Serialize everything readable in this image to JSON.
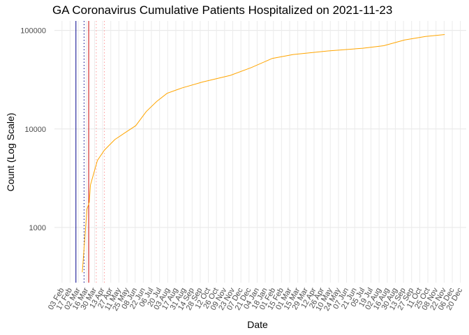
{
  "chart_data": {
    "type": "line",
    "title": "GA Coronavirus Cumulative Patients Hospitalized on 2021-11-23",
    "x_label": "Date",
    "y_label": "Count (Log Scale)",
    "log_y": true,
    "grid": true,
    "xlim": [
      -13,
      696
    ],
    "ylim": [
      275,
      125000
    ],
    "yticks": [
      1000,
      10000,
      100000
    ],
    "xticks": [
      {
        "value": 0,
        "label": "03 Feb"
      },
      {
        "value": 14,
        "label": "17 Feb"
      },
      {
        "value": 28,
        "label": "02 Mar"
      },
      {
        "value": 42,
        "label": "16 Mar"
      },
      {
        "value": 56,
        "label": "30 Mar"
      },
      {
        "value": 70,
        "label": "13 Apr"
      },
      {
        "value": 84,
        "label": "27 Apr"
      },
      {
        "value": 98,
        "label": "11 May"
      },
      {
        "value": 112,
        "label": "25 May"
      },
      {
        "value": 126,
        "label": "08 Jun"
      },
      {
        "value": 140,
        "label": "22 Jun"
      },
      {
        "value": 154,
        "label": "06 Jul"
      },
      {
        "value": 168,
        "label": "20 Jul"
      },
      {
        "value": 182,
        "label": "03 Aug"
      },
      {
        "value": 196,
        "label": "17 Aug"
      },
      {
        "value": 210,
        "label": "31 Aug"
      },
      {
        "value": 224,
        "label": "14 Sep"
      },
      {
        "value": 238,
        "label": "28 Sep"
      },
      {
        "value": 252,
        "label": "12 Oct"
      },
      {
        "value": 266,
        "label": "26 Oct"
      },
      {
        "value": 280,
        "label": "09 Nov"
      },
      {
        "value": 294,
        "label": "23 Nov"
      },
      {
        "value": 308,
        "label": "07 Dec"
      },
      {
        "value": 322,
        "label": "21 Dec"
      },
      {
        "value": 336,
        "label": "04 Jan"
      },
      {
        "value": 350,
        "label": "18 Jan"
      },
      {
        "value": 364,
        "label": "01 Feb"
      },
      {
        "value": 378,
        "label": "15 Feb"
      },
      {
        "value": 392,
        "label": "01 Mar"
      },
      {
        "value": 406,
        "label": "15 Mar"
      },
      {
        "value": 420,
        "label": "29 Mar"
      },
      {
        "value": 434,
        "label": "12 Apr"
      },
      {
        "value": 448,
        "label": "26 Apr"
      },
      {
        "value": 462,
        "label": "10 May"
      },
      {
        "value": 476,
        "label": "24 May"
      },
      {
        "value": 490,
        "label": "07 Jun"
      },
      {
        "value": 504,
        "label": "21 Jun"
      },
      {
        "value": 518,
        "label": "05 Jul"
      },
      {
        "value": 532,
        "label": "19 Jul"
      },
      {
        "value": 546,
        "label": "02 Aug"
      },
      {
        "value": 560,
        "label": "16 Aug"
      },
      {
        "value": 574,
        "label": "30 Aug"
      },
      {
        "value": 588,
        "label": "13 Sep"
      },
      {
        "value": 602,
        "label": "27 Sep"
      },
      {
        "value": 616,
        "label": "11 Oct"
      },
      {
        "value": 630,
        "label": "25 Oct"
      },
      {
        "value": 644,
        "label": "08 Nov"
      },
      {
        "value": 658,
        "label": "22 Nov"
      },
      {
        "value": 672,
        "label": "06 Dec"
      },
      {
        "value": 686,
        "label": "20 Dec"
      }
    ],
    "vlines": [
      {
        "x": 24,
        "color": "#00008b",
        "style": "solid"
      },
      {
        "x": 38,
        "color": "#00008b",
        "style": "dotted"
      },
      {
        "x": 46,
        "color": "#cc0000",
        "style": "solid"
      },
      {
        "x": 59,
        "color": "#ff9999",
        "style": "dotted"
      },
      {
        "x": 73,
        "color": "#ff9999",
        "style": "dotted"
      }
    ],
    "series": [
      {
        "color": "#ffa500",
        "x": [
          35,
          43,
          47,
          49,
          61,
          73,
          91,
          109,
          127,
          145,
          163,
          181,
          206,
          242,
          290,
          326,
          362,
          398,
          458,
          518,
          554,
          590,
          626,
          659
        ],
        "values": [
          350,
          1530,
          1800,
          2700,
          4800,
          6100,
          7800,
          9200,
          10800,
          15000,
          19000,
          23000,
          26000,
          30000,
          35000,
          42000,
          52000,
          57000,
          62000,
          66000,
          70000,
          80000,
          87000,
          91000
        ]
      }
    ]
  }
}
